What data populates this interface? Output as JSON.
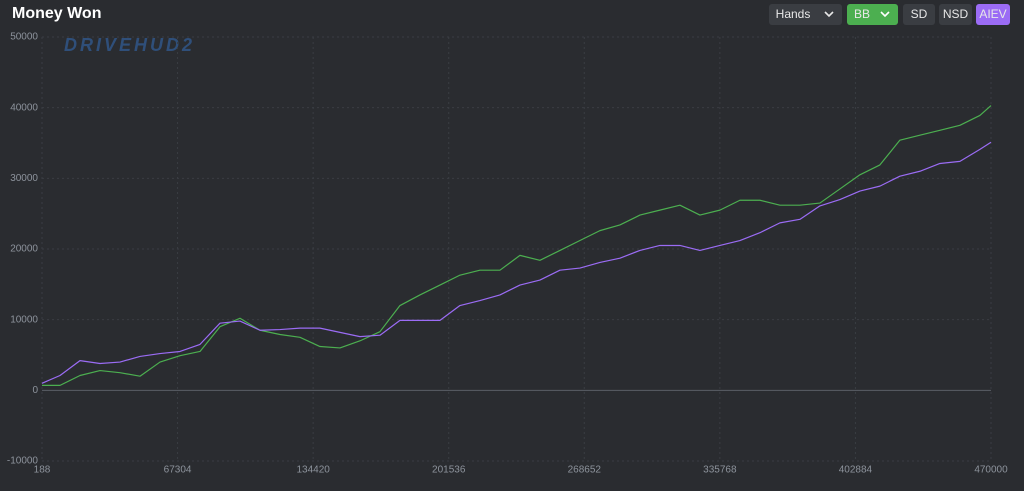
{
  "chart_data": {
    "type": "line",
    "title": "Money Won",
    "toolbar": {
      "axis_select": "Hands",
      "unit_select": "BB",
      "buttons": [
        "SD",
        "NSD",
        "AIEV"
      ]
    },
    "watermark": "DRIVEHUD2",
    "x": [
      188,
      9100,
      19000,
      28900,
      38800,
      48700,
      58600,
      68500,
      78400,
      88300,
      98200,
      108100,
      118000,
      127900,
      137800,
      147700,
      157600,
      167500,
      177400,
      187300,
      197200,
      207100,
      217000,
      226900,
      236800,
      246700,
      256600,
      266500,
      276400,
      286300,
      296200,
      306100,
      316000,
      325900,
      335800,
      345700,
      355600,
      365500,
      375400,
      385300,
      395200,
      405100,
      415000,
      424900,
      434800,
      444700,
      454600,
      464500,
      470000
    ],
    "series": [
      {
        "color": "#4caf50",
        "values": [
          700,
          700,
          2100,
          2800,
          2500,
          2000,
          4000,
          4900,
          5500,
          9000,
          10200,
          8500,
          7900,
          7500,
          6200,
          6000,
          7000,
          8300,
          12000,
          13500,
          14900,
          16300,
          17000,
          17000,
          19100,
          18400,
          19800,
          21200,
          22600,
          23400,
          24800,
          25500,
          26200,
          24800,
          25500,
          26900,
          26900,
          26200,
          26200,
          26500,
          28500,
          30500,
          31900,
          35400,
          36100,
          36800,
          37500,
          38900,
          40300
        ]
      },
      {
        "color": "#9b6cf5",
        "values": [
          1000,
          2100,
          4200,
          3800,
          4000,
          4800,
          5200,
          5500,
          6500,
          9500,
          9800,
          8500,
          8600,
          8800,
          8800,
          8200,
          7600,
          7800,
          9900,
          9900,
          9900,
          12000,
          12700,
          13500,
          14900,
          15600,
          17000,
          17300,
          18100,
          18700,
          19800,
          20500,
          20500,
          19800,
          20500,
          21200,
          22300,
          23700,
          24200,
          26100,
          27000,
          28200,
          28900,
          30300,
          31000,
          32100,
          32400,
          34100,
          35100
        ]
      }
    ],
    "xlim": [
      188,
      470000
    ],
    "xticks": [
      188,
      67304,
      134420,
      201536,
      268652,
      335768,
      402884,
      470000
    ],
    "ylim": [
      -10000,
      50000
    ],
    "yticks": [
      -10000,
      0,
      10000,
      20000,
      30000,
      40000,
      50000
    ],
    "grid": true
  }
}
